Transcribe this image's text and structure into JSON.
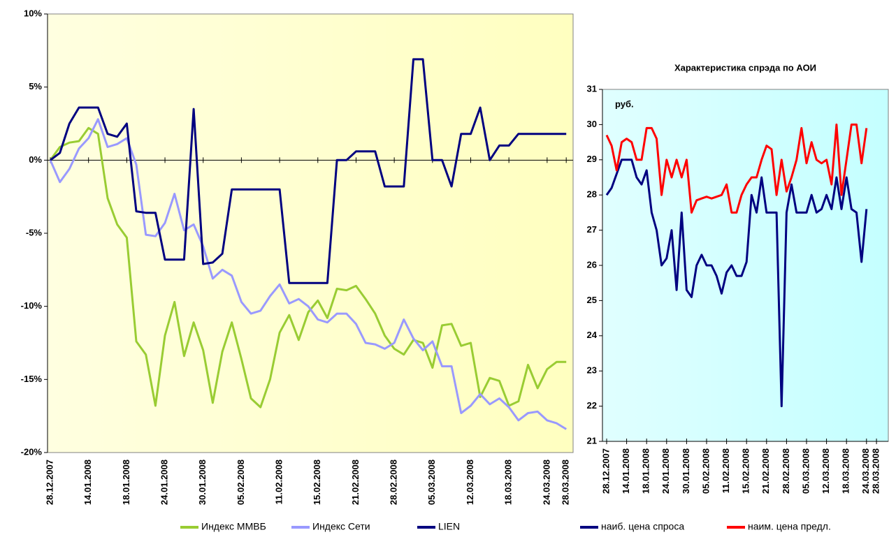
{
  "chart_data": [
    {
      "type": "line",
      "categories": [
        "28.12.2007",
        null,
        null,
        null,
        "14.01.2008",
        null,
        null,
        null,
        "18.01.2008",
        null,
        null,
        null,
        "24.01.2008",
        null,
        null,
        null,
        "30.01.2008",
        null,
        null,
        null,
        "05.02.2008",
        null,
        null,
        null,
        "11.02.2008",
        null,
        null,
        null,
        "15.02.2008",
        null,
        null,
        null,
        "21.02.2008",
        null,
        null,
        null,
        "28.02.2008",
        null,
        null,
        null,
        "05.03.2008",
        null,
        null,
        null,
        "12.03.2008",
        null,
        null,
        null,
        "18.03.2008",
        null,
        null,
        null,
        "24.03.2008",
        null,
        "28.03.2008"
      ],
      "series": [
        {
          "name": "Индекс ММВБ",
          "color": "#99cc33",
          "values": [
            0,
            0.9,
            1.2,
            1.3,
            2.2,
            1.8,
            -2.6,
            -4.4,
            -5.3,
            -12.4,
            -13.3,
            -16.8,
            -12.0,
            -9.7,
            -13.4,
            -11.1,
            -13.0,
            -16.6,
            -13.1,
            -11.1,
            -13.6,
            -16.3,
            -16.9,
            -15.0,
            -11.8,
            -10.6,
            -12.3,
            -10.4,
            -9.6,
            -10.8,
            -8.8,
            -8.9,
            -8.6,
            -9.5,
            -10.5,
            -12.0,
            -12.9,
            -13.3,
            -12.3,
            -12.5,
            -14.2,
            -11.3,
            -11.2,
            -12.7,
            -12.5,
            -16.2,
            -14.9,
            -15.1,
            -16.8,
            -16.5,
            -14.0,
            -15.6,
            -14.3,
            -13.8,
            -13.8
          ]
        },
        {
          "name": "Индекс Сети",
          "color": "#9999ff",
          "values": [
            0,
            -1.5,
            -0.6,
            0.8,
            1.5,
            2.8,
            0.9,
            1.1,
            1.5,
            -0.3,
            -5.1,
            -5.2,
            -4.3,
            -2.3,
            -4.8,
            -4.4,
            -5.9,
            -8.1,
            -7.5,
            -7.9,
            -9.7,
            -10.5,
            -10.3,
            -9.3,
            -8.5,
            -9.8,
            -9.5,
            -10.0,
            -10.9,
            -11.1,
            -10.5,
            -10.5,
            -11.2,
            -12.5,
            -12.6,
            -12.9,
            -12.5,
            -10.9,
            -12.2,
            -13.0,
            -12.4,
            -14.1,
            -14.1,
            -17.3,
            -16.8,
            -16.0,
            -16.7,
            -16.3,
            -16.9,
            -17.8,
            -17.3,
            -17.2,
            -17.8,
            -18.0,
            -18.4
          ]
        },
        {
          "name": "LIEN",
          "color": "#000080",
          "values": [
            0,
            0.5,
            2.5,
            3.6,
            3.6,
            3.6,
            1.8,
            1.6,
            2.5,
            -3.5,
            -3.6,
            -3.6,
            -6.8,
            -6.8,
            -6.8,
            3.5,
            -7.1,
            -7.0,
            -6.4,
            -2.0,
            -2.0,
            -2.0,
            -2.0,
            -2.0,
            -2.0,
            -8.4,
            -8.4,
            -8.4,
            -8.4,
            -8.4,
            0,
            0,
            0.6,
            0.6,
            0.6,
            -1.8,
            -1.8,
            -1.8,
            6.9,
            6.9,
            0,
            0,
            -1.8,
            1.8,
            1.8,
            3.6,
            0,
            1.0,
            1.0,
            1.8,
            1.8,
            1.8,
            1.8,
            1.8,
            1.8
          ]
        }
      ],
      "ylim": [
        -20,
        10
      ],
      "yticks": [
        {
          "value": 10,
          "label": "10%"
        },
        {
          "value": 5,
          "label": "5%"
        },
        {
          "value": 0,
          "label": "0%"
        },
        {
          "value": -5,
          "label": "-5%"
        },
        {
          "value": -10,
          "label": "-10%"
        },
        {
          "value": -15,
          "label": "-15%"
        },
        {
          "value": -20,
          "label": "-20%"
        }
      ],
      "background": "#ffffcc",
      "legend": "bottom"
    },
    {
      "type": "line",
      "title": "Характеристика спрэда по АОИ",
      "annotation": "руб.",
      "categories": [
        "28.12.2007",
        null,
        null,
        null,
        "14.01.2008",
        null,
        null,
        null,
        "18.01.2008",
        null,
        null,
        null,
        "24.01.2008",
        null,
        null,
        null,
        "30.01.2008",
        null,
        null,
        null,
        "05.02.2008",
        null,
        null,
        null,
        "11.02.2008",
        null,
        null,
        null,
        "15.02.2008",
        null,
        null,
        null,
        "21.02.2008",
        null,
        null,
        null,
        "28.02.2008",
        null,
        null,
        null,
        "05.03.2008",
        null,
        null,
        null,
        "12.03.2008",
        null,
        null,
        null,
        "18.03.2008",
        null,
        null,
        null,
        "24.03.2008",
        null,
        "28.03.2008"
      ],
      "series": [
        {
          "name": "наиб. цена спроса",
          "color": "#000080",
          "values": [
            28.0,
            28.2,
            28.6,
            29.0,
            29.0,
            29.0,
            28.5,
            28.3,
            28.7,
            27.5,
            27.0,
            26.0,
            26.2,
            27.0,
            25.3,
            27.5,
            25.3,
            25.1,
            26.0,
            26.3,
            26.0,
            26.0,
            25.7,
            25.2,
            25.8,
            26.0,
            25.7,
            25.7,
            26.1,
            28.0,
            27.5,
            28.5,
            27.5,
            27.5,
            27.5,
            22.0,
            27.5,
            28.3,
            27.5,
            27.5,
            27.5,
            28.0,
            27.5,
            27.6,
            28.0,
            27.6,
            28.5,
            27.6,
            28.5,
            27.6,
            27.5,
            26.1,
            27.6,
            null,
            null
          ]
        },
        {
          "name": "наим. цена предл.",
          "color": "#ff0000",
          "values": [
            29.7,
            29.4,
            28.7,
            29.5,
            29.6,
            29.5,
            29.0,
            29.0,
            29.9,
            29.9,
            29.6,
            28.0,
            29.0,
            28.5,
            29.0,
            28.5,
            29.0,
            27.5,
            27.85,
            27.9,
            27.95,
            27.9,
            27.95,
            28.0,
            28.3,
            27.5,
            27.5,
            28.0,
            28.3,
            28.5,
            28.5,
            29.0,
            29.4,
            29.3,
            28.0,
            29.0,
            28.1,
            28.5,
            29.0,
            29.9,
            28.9,
            29.5,
            29.0,
            28.9,
            29.0,
            28.3,
            30.0,
            28.0,
            29.0,
            30.0,
            30.0,
            28.9,
            29.9,
            null,
            null
          ]
        }
      ],
      "ylim": [
        21,
        31
      ],
      "yticks": [
        21,
        22,
        23,
        24,
        25,
        26,
        27,
        28,
        29,
        30,
        31
      ],
      "background": "#ccffff",
      "legend": "bottom"
    }
  ]
}
